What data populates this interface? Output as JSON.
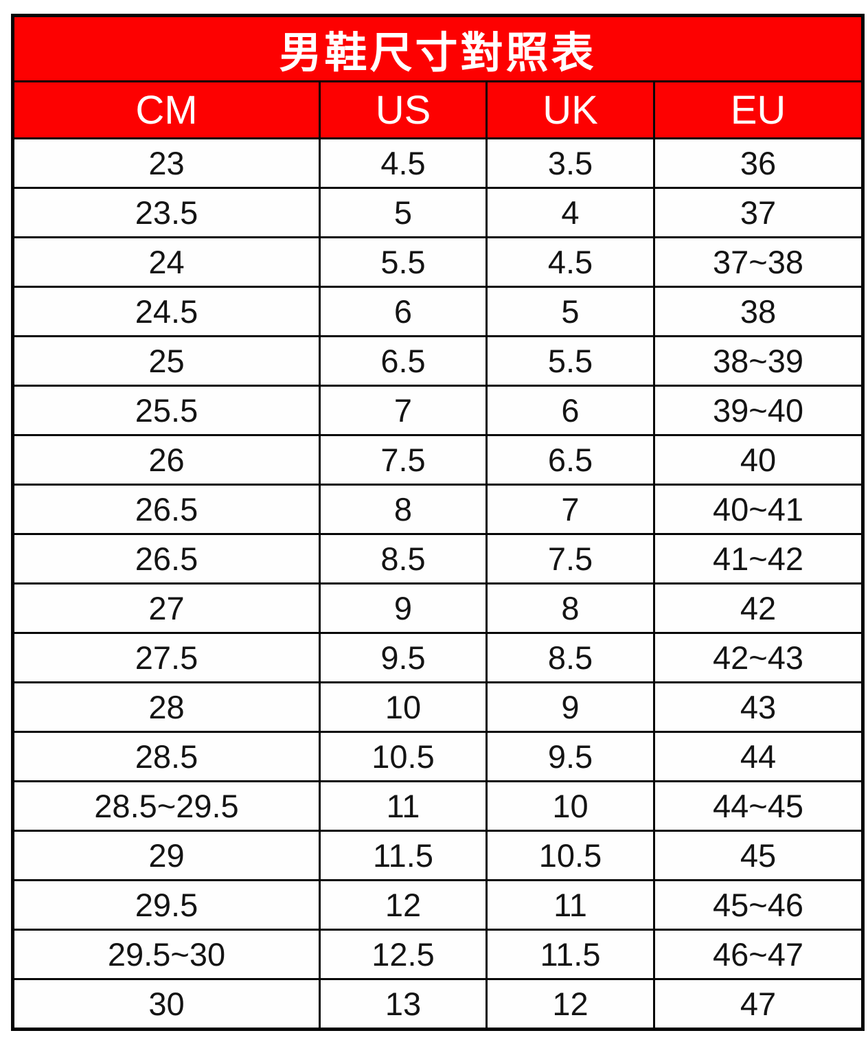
{
  "title": "男鞋尺寸對照表",
  "colors": {
    "header_bg": "#FD0101",
    "header_text": "#FFFFFF",
    "border": "#060606",
    "cell_text": "#141414",
    "cell_bg": "#FFFFFF"
  },
  "chart_data": {
    "type": "table",
    "title": "男鞋尺寸對照表",
    "columns": [
      "CM",
      "US",
      "UK",
      "EU"
    ],
    "rows": [
      [
        "23",
        "4.5",
        "3.5",
        "36"
      ],
      [
        "23.5",
        "5",
        "4",
        "37"
      ],
      [
        "24",
        "5.5",
        "4.5",
        "37~38"
      ],
      [
        "24.5",
        "6",
        "5",
        "38"
      ],
      [
        "25",
        "6.5",
        "5.5",
        "38~39"
      ],
      [
        "25.5",
        "7",
        "6",
        "39~40"
      ],
      [
        "26",
        "7.5",
        "6.5",
        "40"
      ],
      [
        "26.5",
        "8",
        "7",
        "40~41"
      ],
      [
        "26.5",
        "8.5",
        "7.5",
        "41~42"
      ],
      [
        "27",
        "9",
        "8",
        "42"
      ],
      [
        "27.5",
        "9.5",
        "8.5",
        "42~43"
      ],
      [
        "28",
        "10",
        "9",
        "43"
      ],
      [
        "28.5",
        "10.5",
        "9.5",
        "44"
      ],
      [
        "28.5~29.5",
        "11",
        "10",
        "44~45"
      ],
      [
        "29",
        "11.5",
        "10.5",
        "45"
      ],
      [
        "29.5",
        "12",
        "11",
        "45~46"
      ],
      [
        "29.5~30",
        "12.5",
        "11.5",
        "46~47"
      ],
      [
        "30",
        "13",
        "12",
        "47"
      ]
    ]
  }
}
